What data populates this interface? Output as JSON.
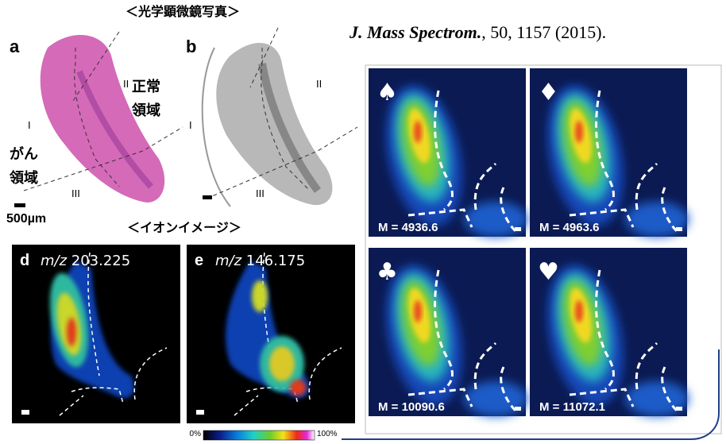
{
  "citation": {
    "journal": "J. Mass Spectrom.",
    "details": ", 50, 1157 (2015)."
  },
  "optical": {
    "heading": "＜光学顕微鏡写真＞",
    "scale": "500µm",
    "panels": [
      {
        "letter": "a",
        "regions": [
          "I",
          "II",
          "III"
        ],
        "normal": [
          "正常",
          "領域"
        ],
        "cancer": [
          "がん",
          "領域"
        ]
      },
      {
        "letter": "b",
        "regions": [
          "I",
          "II",
          "III"
        ]
      }
    ]
  },
  "ion": {
    "heading": "＜イオンイメージ＞",
    "panels": [
      {
        "letter": "d",
        "mz": "m/z",
        "value": "203.225"
      },
      {
        "letter": "e",
        "mz": "m/z",
        "value": "146.175"
      }
    ],
    "colorbar": {
      "min": "0%",
      "max": "100%"
    }
  },
  "maps": [
    {
      "symbol": "♠",
      "label": "M = 4936.6"
    },
    {
      "symbol": "♦",
      "label": "M = 4963.6"
    },
    {
      "symbol": "♣",
      "label": "M = 10090.6"
    },
    {
      "symbol": "♥",
      "label": "M = 11072.1"
    }
  ]
}
